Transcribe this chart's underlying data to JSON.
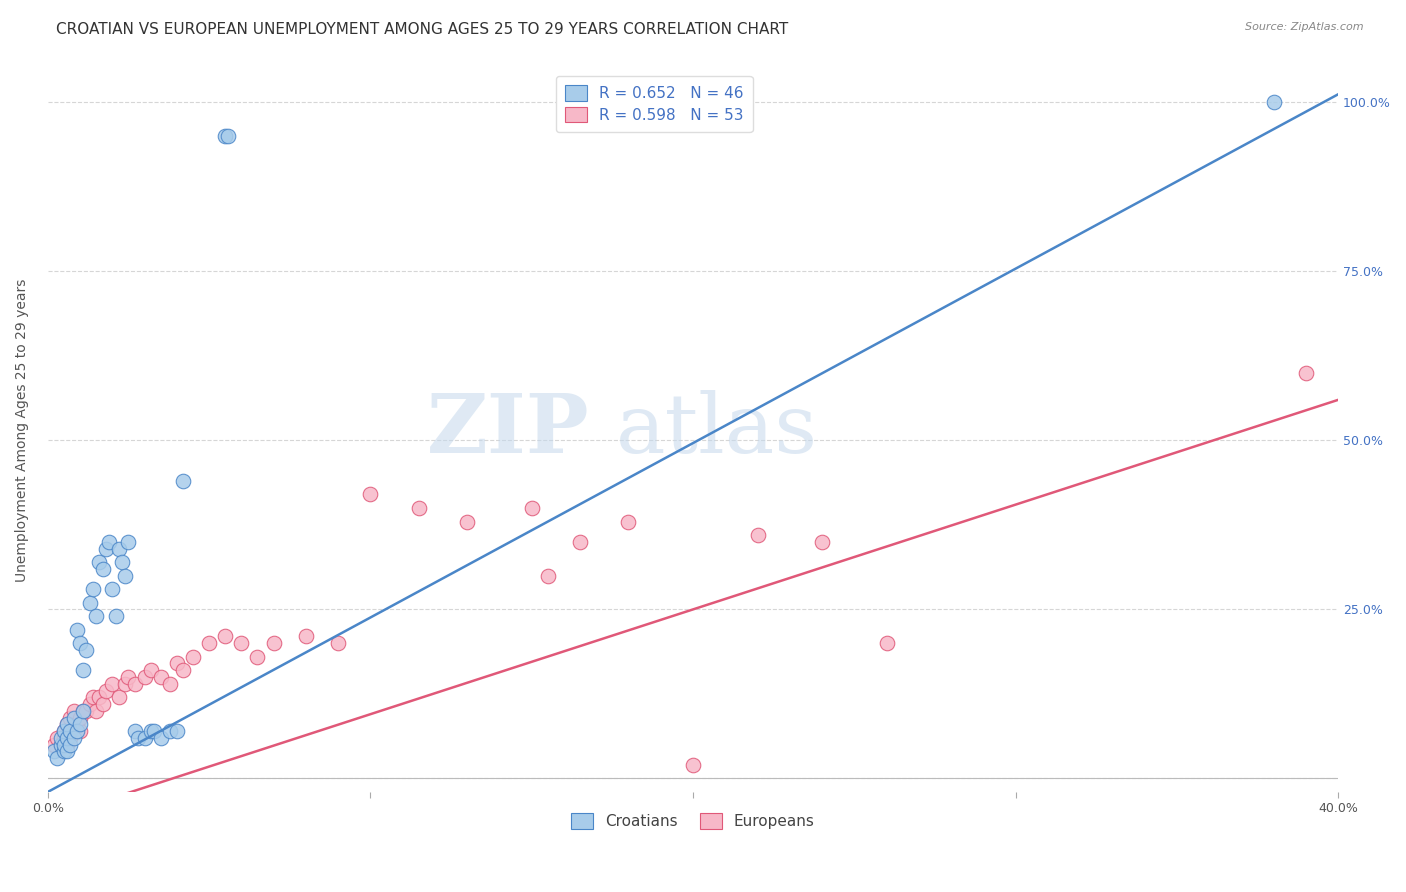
{
  "title": "CROATIAN VS EUROPEAN UNEMPLOYMENT AMONG AGES 25 TO 29 YEARS CORRELATION CHART",
  "source": "Source: ZipAtlas.com",
  "ylabel": "Unemployment Among Ages 25 to 29 years",
  "xlim": [
    0.0,
    0.4
  ],
  "ylim": [
    -0.02,
    1.05
  ],
  "croatians_color": "#A8CCEA",
  "europeans_color": "#F7B8C8",
  "croatians_line_color": "#4A86C8",
  "europeans_line_color": "#E05878",
  "background_color": "#FFFFFF",
  "grid_color": "#CCCCCC",
  "legend_R_color": "#4472C4",
  "croatians_R": 0.652,
  "croatians_N": 46,
  "europeans_R": 0.598,
  "europeans_N": 53,
  "croatian_line_slope": 2.58,
  "croatian_line_intercept": -0.02,
  "european_line_slope": 1.55,
  "european_line_intercept": -0.06,
  "croatians_scatter_x": [
    0.002,
    0.003,
    0.004,
    0.004,
    0.005,
    0.005,
    0.005,
    0.006,
    0.006,
    0.006,
    0.007,
    0.007,
    0.008,
    0.008,
    0.009,
    0.009,
    0.01,
    0.01,
    0.011,
    0.011,
    0.012,
    0.013,
    0.014,
    0.015,
    0.016,
    0.017,
    0.018,
    0.019,
    0.02,
    0.021,
    0.022,
    0.023,
    0.024,
    0.025,
    0.027,
    0.028,
    0.03,
    0.032,
    0.033,
    0.035,
    0.038,
    0.04,
    0.042,
    0.055,
    0.056,
    0.38
  ],
  "croatians_scatter_y": [
    0.04,
    0.03,
    0.05,
    0.06,
    0.04,
    0.05,
    0.07,
    0.04,
    0.06,
    0.08,
    0.05,
    0.07,
    0.06,
    0.09,
    0.07,
    0.22,
    0.08,
    0.2,
    0.16,
    0.1,
    0.19,
    0.26,
    0.28,
    0.24,
    0.32,
    0.31,
    0.34,
    0.35,
    0.28,
    0.24,
    0.34,
    0.32,
    0.3,
    0.35,
    0.07,
    0.06,
    0.06,
    0.07,
    0.07,
    0.06,
    0.07,
    0.07,
    0.44,
    0.95,
    0.95,
    1.0
  ],
  "europeans_scatter_x": [
    0.002,
    0.003,
    0.004,
    0.005,
    0.005,
    0.006,
    0.006,
    0.007,
    0.007,
    0.008,
    0.008,
    0.009,
    0.01,
    0.01,
    0.011,
    0.012,
    0.013,
    0.014,
    0.015,
    0.016,
    0.017,
    0.018,
    0.02,
    0.022,
    0.024,
    0.025,
    0.027,
    0.03,
    0.032,
    0.035,
    0.038,
    0.04,
    0.042,
    0.045,
    0.05,
    0.055,
    0.06,
    0.065,
    0.07,
    0.08,
    0.09,
    0.1,
    0.115,
    0.13,
    0.15,
    0.155,
    0.165,
    0.18,
    0.2,
    0.22,
    0.24,
    0.26,
    0.39
  ],
  "europeans_scatter_y": [
    0.05,
    0.06,
    0.05,
    0.06,
    0.07,
    0.05,
    0.08,
    0.06,
    0.09,
    0.07,
    0.1,
    0.08,
    0.07,
    0.09,
    0.1,
    0.1,
    0.11,
    0.12,
    0.1,
    0.12,
    0.11,
    0.13,
    0.14,
    0.12,
    0.14,
    0.15,
    0.14,
    0.15,
    0.16,
    0.15,
    0.14,
    0.17,
    0.16,
    0.18,
    0.2,
    0.21,
    0.2,
    0.18,
    0.2,
    0.21,
    0.2,
    0.42,
    0.4,
    0.38,
    0.4,
    0.3,
    0.35,
    0.38,
    0.02,
    0.36,
    0.35,
    0.2,
    0.6
  ],
  "watermark_zip": "ZIP",
  "watermark_atlas": "atlas",
  "title_fontsize": 11,
  "axis_label_fontsize": 10,
  "tick_fontsize": 9,
  "legend_fontsize": 11
}
